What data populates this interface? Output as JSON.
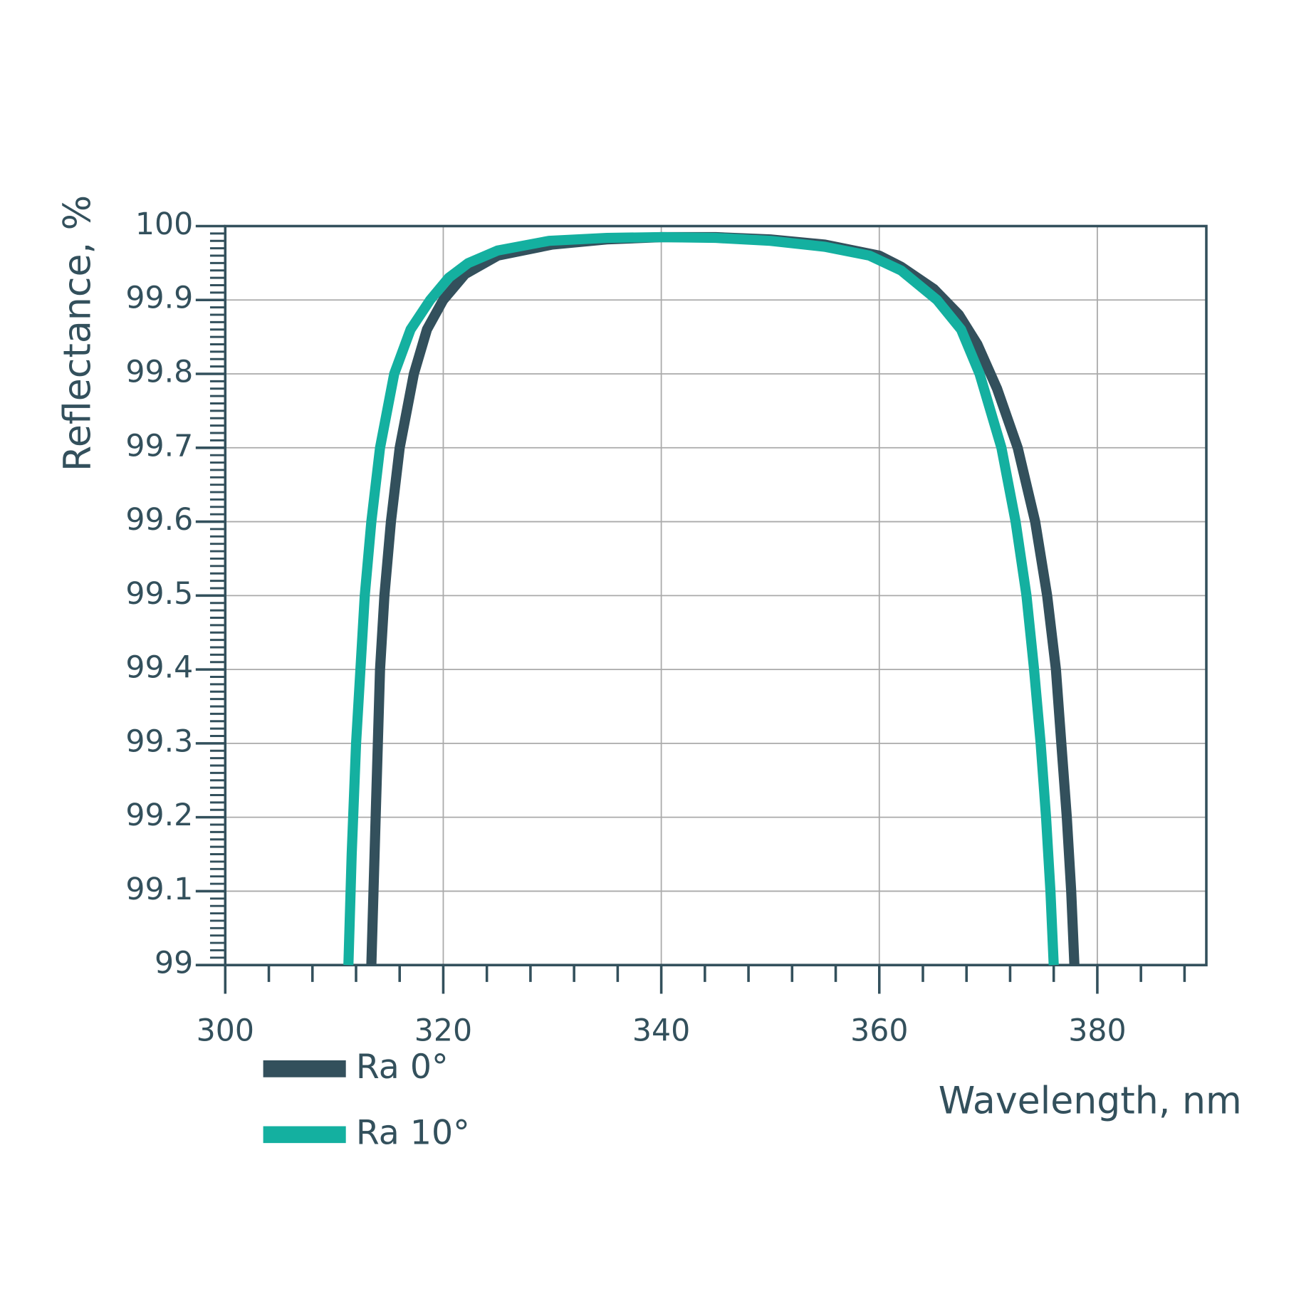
{
  "chart_data": {
    "type": "line",
    "xlabel": "Wavelength, nm",
    "ylabel": "Reflectance, %",
    "xlim": [
      300,
      390
    ],
    "ylim": [
      99,
      100
    ],
    "xticks": [
      300,
      320,
      340,
      360,
      380
    ],
    "yticks": [
      99,
      99.1,
      99.2,
      99.3,
      99.4,
      99.5,
      99.6,
      99.7,
      99.8,
      99.9,
      100
    ],
    "xminorticks": [
      304,
      308,
      312,
      316,
      324,
      328,
      332,
      336,
      344,
      348,
      352,
      356,
      364,
      368,
      372,
      376,
      384,
      388
    ],
    "yminorticks": [
      99.01,
      99.02,
      99.03,
      99.04,
      99.05,
      99.06,
      99.07,
      99.08,
      99.09,
      99.11,
      99.12,
      99.13,
      99.14,
      99.15,
      99.16,
      99.17,
      99.18,
      99.19,
      99.21,
      99.22,
      99.23,
      99.24,
      99.25,
      99.26,
      99.27,
      99.28,
      99.29,
      99.31,
      99.32,
      99.33,
      99.34,
      99.35,
      99.36,
      99.37,
      99.38,
      99.39,
      99.41,
      99.42,
      99.43,
      99.44,
      99.45,
      99.46,
      99.47,
      99.48,
      99.49,
      99.51,
      99.52,
      99.53,
      99.54,
      99.55,
      99.56,
      99.57,
      99.58,
      99.59,
      99.61,
      99.62,
      99.63,
      99.64,
      99.65,
      99.66,
      99.67,
      99.68,
      99.69,
      99.71,
      99.72,
      99.73,
      99.74,
      99.75,
      99.76,
      99.77,
      99.78,
      99.79,
      99.81,
      99.82,
      99.83,
      99.84,
      99.85,
      99.86,
      99.87,
      99.88,
      99.89,
      99.91,
      99.92,
      99.93,
      99.94,
      99.95,
      99.96,
      99.97,
      99.98,
      99.99
    ],
    "grid": true,
    "legend": "bottom-left",
    "series": [
      {
        "name": "Ra 0°",
        "color": "#33505c",
        "x": [
          313.4,
          313.8,
          314.2,
          314.6,
          315.2,
          316,
          317.3,
          318.5,
          320,
          322,
          325,
          330,
          335,
          340,
          345,
          350,
          355,
          360,
          362,
          365,
          367.3,
          369,
          370.8,
          372.7,
          374.3,
          375.4,
          376.2,
          376.7,
          377.2,
          377.6,
          377.9
        ],
        "values": [
          99,
          99.2,
          99.4,
          99.5,
          99.6,
          99.7,
          99.8,
          99.86,
          99.9,
          99.935,
          99.96,
          99.975,
          99.982,
          99.985,
          99.985,
          99.982,
          99.975,
          99.96,
          99.945,
          99.915,
          99.88,
          99.84,
          99.78,
          99.7,
          99.6,
          99.5,
          99.4,
          99.3,
          99.2,
          99.1,
          99
        ]
      },
      {
        "name": "Ra 10°",
        "color": "#14b0a0",
        "x": [
          311.3,
          311.6,
          312,
          312.8,
          313.4,
          314.2,
          315.5,
          317,
          318.8,
          320.5,
          322.3,
          325,
          329.7,
          335,
          340,
          345,
          350,
          355,
          359.1,
          362,
          365.3,
          367.5,
          369.2,
          371.2,
          372.5,
          373.5,
          374.2,
          374.8,
          375.3,
          375.7,
          376
        ],
        "values": [
          99,
          99.15,
          99.3,
          99.5,
          99.6,
          99.7,
          99.8,
          99.86,
          99.9,
          99.93,
          99.95,
          99.967,
          99.98,
          99.984,
          99.985,
          99.984,
          99.98,
          99.972,
          99.96,
          99.94,
          99.9,
          99.86,
          99.8,
          99.7,
          99.6,
          99.5,
          99.4,
          99.3,
          99.2,
          99.1,
          99
        ]
      }
    ]
  }
}
